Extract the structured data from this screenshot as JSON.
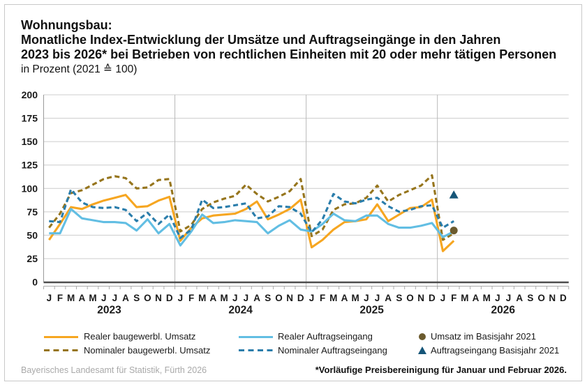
{
  "title": {
    "lines": [
      "Wohnungsbau:",
      "Monatliche Index-Entwicklung der Umsätze und Auftragseingänge in den Jahren",
      "2023 bis 2026* bei Betrieben von rechtlichen Einheiten mit 20 oder mehr tätigen Personen",
      "in Prozent (2021 ≙ 100)"
    ]
  },
  "chart_data": {
    "type": "line",
    "ylim": [
      0,
      200
    ],
    "yticks": [
      0,
      25,
      50,
      75,
      100,
      125,
      150,
      175,
      200
    ],
    "month_labels": [
      "J",
      "F",
      "M",
      "A",
      "M",
      "J",
      "J",
      "A",
      "S",
      "O",
      "N",
      "D"
    ],
    "years": [
      "2023",
      "2024",
      "2025",
      "2026"
    ],
    "x_range_months": 48,
    "series": [
      {
        "name": "Realer baugewerbl. Umsatz",
        "color": "#F6A621",
        "style": "solid",
        "values": [
          45,
          62,
          80,
          78,
          83,
          87,
          90,
          93,
          80,
          81,
          87,
          91,
          44,
          58,
          68,
          71,
          72,
          73,
          78,
          86,
          67,
          72,
          78,
          88,
          37,
          45,
          56,
          64,
          65,
          67,
          83,
          65,
          72,
          79,
          80,
          88,
          33,
          44
        ]
      },
      {
        "name": "Nominaler baugewerbl. Umsatz",
        "color": "#96751D",
        "style": "dashed",
        "values": [
          58,
          73,
          95,
          98,
          104,
          110,
          113,
          111,
          100,
          101,
          109,
          110,
          54,
          61,
          78,
          85,
          89,
          92,
          104,
          94,
          86,
          91,
          97,
          110,
          49,
          56,
          77,
          83,
          84,
          90,
          103,
          86,
          93,
          98,
          103,
          114,
          45,
          52
        ]
      },
      {
        "name": "Realer Auftragseingang",
        "color": "#62BEE3",
        "style": "solid",
        "values": [
          52,
          52,
          78,
          68,
          66,
          64,
          64,
          63,
          55,
          67,
          52,
          62,
          39,
          54,
          72,
          63,
          64,
          66,
          65,
          64,
          52,
          60,
          66,
          56,
          54,
          62,
          73,
          66,
          65,
          71,
          71,
          62,
          58,
          58,
          60,
          63,
          48,
          54
        ]
      },
      {
        "name": "Nominaler Auftragseingang",
        "color": "#2A7DAB",
        "style": "dashed",
        "values": [
          65,
          64,
          99,
          85,
          80,
          79,
          80,
          77,
          65,
          74,
          62,
          72,
          47,
          56,
          88,
          79,
          80,
          82,
          84,
          68,
          70,
          81,
          80,
          73,
          53,
          67,
          94,
          86,
          84,
          88,
          90,
          81,
          75,
          77,
          81,
          82,
          58,
          65
        ]
      }
    ],
    "point_markers": [
      {
        "name": "Umsatz im Basisjahr 2021",
        "marker": "circle",
        "color": "#6B5A2D",
        "month_index": 37,
        "value": 55
      },
      {
        "name": "Auftragseingang Basisjahr 2021",
        "marker": "triangle",
        "color": "#155578",
        "month_index": 37,
        "value": 93
      }
    ]
  },
  "legend": [
    {
      "label": "Realer baugewerbl. Umsatz",
      "swatch": "solid",
      "color": "#F6A621"
    },
    {
      "label": "Nominaler baugewerbl. Umsatz",
      "swatch": "dashed",
      "color": "#96751D"
    },
    {
      "label": "Realer Auftragseingang",
      "swatch": "solid",
      "color": "#62BEE3"
    },
    {
      "label": "Nominaler Auftragseingang",
      "swatch": "dashed",
      "color": "#2A7DAB"
    },
    {
      "label": "Umsatz im Basisjahr 2021",
      "swatch": "circle",
      "color": "#6B5A2D"
    },
    {
      "label": "Auftragseingang Basisjahr 2021",
      "swatch": "triangle",
      "color": "#155578"
    }
  ],
  "footer": {
    "source": "Bayerisches Landesamt für Statistik, Fürth 2026",
    "note": "*Vorläufige Preisbereinigung für Januar und Februar 2026."
  }
}
